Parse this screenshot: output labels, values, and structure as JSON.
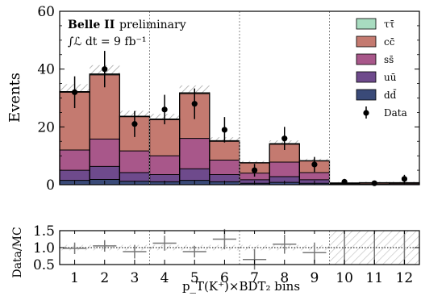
{
  "chart_data": [
    {
      "type": "bar",
      "stacked": true,
      "categories": [
        "1",
        "2",
        "3",
        "4",
        "5",
        "6",
        "7",
        "8",
        "9",
        "10",
        "11",
        "12"
      ],
      "series": [
        {
          "name": "dd̄",
          "color": "#3a4a78",
          "values": [
            1.5,
            1.8,
            1.2,
            1.0,
            1.5,
            1.0,
            0.5,
            0.8,
            0.5,
            0.0,
            0.0,
            0.0
          ]
        },
        {
          "name": "uū",
          "color": "#6e4a8c",
          "values": [
            3.5,
            4.5,
            3.0,
            2.5,
            4.0,
            2.5,
            1.2,
            2.0,
            1.2,
            0.1,
            0.1,
            0.1
          ]
        },
        {
          "name": "ss̄",
          "color": "#a8578a",
          "values": [
            7.0,
            9.5,
            7.5,
            6.5,
            10.5,
            5.0,
            2.3,
            5.0,
            2.5,
            0.2,
            0.2,
            0.3
          ]
        },
        {
          "name": "cc̄",
          "color": "#c47a70",
          "values": [
            20.0,
            22.2,
            11.8,
            12.5,
            15.5,
            6.5,
            3.5,
            6.2,
            4.0,
            0.3,
            0.4,
            0.3
          ]
        },
        {
          "name": "ττ̄",
          "color": "#a8dcc0",
          "values": [
            0.2,
            0.3,
            0.2,
            0.2,
            0.3,
            0.2,
            0.1,
            0.2,
            0.1,
            0.0,
            0.0,
            0.0
          ]
        }
      ],
      "data_points": {
        "name": "Data",
        "values": [
          32,
          40,
          21,
          26,
          28,
          19,
          5,
          16,
          7,
          1,
          0.5,
          2
        ],
        "errors": [
          5.5,
          6.3,
          4.5,
          5.1,
          5.3,
          4.4,
          2.2,
          4.0,
          2.6,
          1.0,
          0.7,
          1.4
        ]
      },
      "title": "",
      "xlabel": "",
      "ylabel": "Events",
      "ylim": [
        0,
        60
      ],
      "yticks": [
        "0",
        "20",
        "40",
        "60"
      ],
      "bin_groups": [
        [
          1,
          3
        ],
        [
          4,
          6
        ],
        [
          7,
          9
        ],
        [
          10,
          12
        ]
      ],
      "annotations": {
        "experiment": "Belle II",
        "status": "preliminary",
        "luminosity": "∫ℒ dt = 9 fb⁻¹"
      },
      "legend": {
        "placement": "top-right",
        "entries": [
          "ττ̄",
          "cc̄",
          "ss̄",
          "uū",
          "dd̄",
          "Data"
        ]
      },
      "mc_uncertainty": "hatched band"
    },
    {
      "type": "scatter",
      "categories": [
        "1",
        "2",
        "3",
        "4",
        "5",
        "6",
        "7",
        "8",
        "9",
        "10",
        "11",
        "12"
      ],
      "values": [
        0.98,
        1.05,
        0.88,
        1.13,
        0.88,
        1.25,
        0.65,
        1.1,
        0.85,
        null,
        null,
        null
      ],
      "errors": [
        0.17,
        0.17,
        0.2,
        0.22,
        0.17,
        0.3,
        0.3,
        0.28,
        0.3,
        null,
        null,
        null
      ],
      "xlabel": "p_T(K⁺)×BDT₂ bins",
      "ylabel": "Data/MC",
      "ylim": [
        0.5,
        1.5
      ],
      "yticks": [
        "0.5",
        "1.0",
        "1.5"
      ],
      "reference_line": 1.0,
      "hatched_region": [
        10,
        12
      ]
    }
  ]
}
